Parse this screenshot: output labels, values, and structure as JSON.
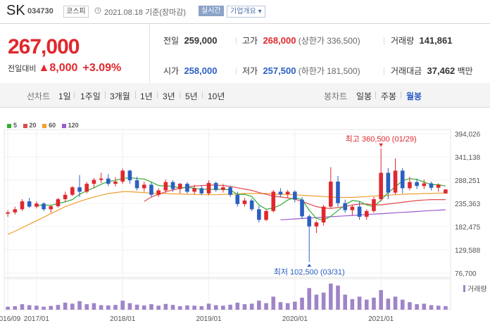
{
  "header": {
    "name": "SK",
    "code": "034730",
    "market": "코스피",
    "date": "2021.08.18 기준(장마감)",
    "realtime_label": "실시간",
    "corp_label": "기업개요 ▾"
  },
  "quote": {
    "price": "267,000",
    "change_label": "전일대비",
    "change_arrow": "▲",
    "change": "8,000",
    "change_pct": "+3.09%",
    "prev_label": "전일",
    "prev": "259,000",
    "high_label": "고가",
    "high": "268,000",
    "upper_limit": "(상한가 336,500)",
    "volume_label": "거래량",
    "volume": "141,861",
    "open_label": "시가",
    "open": "258,000",
    "low_label": "저가",
    "low": "257,500",
    "lower_limit": "(하한가 181,500)",
    "amount_label": "거래대금",
    "amount": "37,462",
    "amount_unit": "백만"
  },
  "tabs": {
    "line_label": "선차트",
    "line_items": [
      "1일",
      "1주일",
      "3개월",
      "1년",
      "3년",
      "5년",
      "10년"
    ],
    "candle_label": "봉차트",
    "candle_items": [
      "일봉",
      "주봉",
      "월봉"
    ],
    "active": "월봉"
  },
  "colors": {
    "up": "#e0282e",
    "down": "#2b5fc2",
    "ma5": "#2fae2f",
    "ma20": "#e04a4a",
    "ma60": "#f0a030",
    "ma120": "#9b59d0",
    "volume": "#a084c8"
  },
  "chart_data": {
    "type": "candlestick",
    "legend": [
      "5",
      "20",
      "60",
      "120"
    ],
    "yticks": [
      "394,026",
      "341,138",
      "288,251",
      "235,363",
      "182,475",
      "129,588",
      "76,700"
    ],
    "ylim": [
      76700,
      394026
    ],
    "xticks": [
      {
        "label": "2016/09",
        "i": 0
      },
      {
        "label": "2017/01",
        "i": 4
      },
      {
        "label": "2018/01",
        "i": 16
      },
      {
        "label": "2019/01",
        "i": 28
      },
      {
        "label": "2020/01",
        "i": 40
      },
      {
        "label": "2021/01",
        "i": 52
      }
    ],
    "annotations": [
      {
        "text": "최고 360,500 (01/29)",
        "i": 52,
        "value": 360500,
        "kind": "high"
      },
      {
        "text": "최저 102,500 (03/31)",
        "i": 42,
        "value": 102500,
        "kind": "low"
      }
    ],
    "volume_label": "거래량",
    "candles": [
      {
        "o": 212000,
        "h": 220000,
        "l": 205000,
        "c": 215000
      },
      {
        "o": 215000,
        "h": 228000,
        "l": 210000,
        "c": 222000
      },
      {
        "o": 222000,
        "h": 245000,
        "l": 218000,
        "c": 240000
      },
      {
        "o": 240000,
        "h": 248000,
        "l": 225000,
        "c": 228000
      },
      {
        "o": 228000,
        "h": 240000,
        "l": 224000,
        "c": 235000
      },
      {
        "o": 235000,
        "h": 238000,
        "l": 218000,
        "c": 222000
      },
      {
        "o": 222000,
        "h": 232000,
        "l": 214000,
        "c": 229000
      },
      {
        "o": 229000,
        "h": 248000,
        "l": 226000,
        "c": 245000
      },
      {
        "o": 245000,
        "h": 262000,
        "l": 238000,
        "c": 255000
      },
      {
        "o": 255000,
        "h": 275000,
        "l": 252000,
        "c": 272000
      },
      {
        "o": 272000,
        "h": 300000,
        "l": 250000,
        "c": 262000
      },
      {
        "o": 262000,
        "h": 284000,
        "l": 258000,
        "c": 280000
      },
      {
        "o": 280000,
        "h": 293000,
        "l": 270000,
        "c": 289000
      },
      {
        "o": 289000,
        "h": 305000,
        "l": 282000,
        "c": 292000
      },
      {
        "o": 292000,
        "h": 302000,
        "l": 275000,
        "c": 280000
      },
      {
        "o": 280000,
        "h": 295000,
        "l": 274000,
        "c": 285000
      },
      {
        "o": 285000,
        "h": 315000,
        "l": 280000,
        "c": 310000
      },
      {
        "o": 310000,
        "h": 312000,
        "l": 280000,
        "c": 288000
      },
      {
        "o": 288000,
        "h": 296000,
        "l": 265000,
        "c": 270000
      },
      {
        "o": 270000,
        "h": 285000,
        "l": 262000,
        "c": 278000
      },
      {
        "o": 278000,
        "h": 284000,
        "l": 250000,
        "c": 255000
      },
      {
        "o": 255000,
        "h": 270000,
        "l": 250000,
        "c": 265000
      },
      {
        "o": 265000,
        "h": 290000,
        "l": 260000,
        "c": 284000
      },
      {
        "o": 284000,
        "h": 288000,
        "l": 262000,
        "c": 268000
      },
      {
        "o": 268000,
        "h": 282000,
        "l": 258000,
        "c": 280000
      },
      {
        "o": 280000,
        "h": 284000,
        "l": 258000,
        "c": 262000
      },
      {
        "o": 262000,
        "h": 278000,
        "l": 256000,
        "c": 270000
      },
      {
        "o": 270000,
        "h": 276000,
        "l": 255000,
        "c": 258000
      },
      {
        "o": 258000,
        "h": 288000,
        "l": 254000,
        "c": 282000
      },
      {
        "o": 282000,
        "h": 285000,
        "l": 262000,
        "c": 266000
      },
      {
        "o": 266000,
        "h": 280000,
        "l": 260000,
        "c": 272000
      },
      {
        "o": 272000,
        "h": 276000,
        "l": 250000,
        "c": 255000
      },
      {
        "o": 255000,
        "h": 262000,
        "l": 228000,
        "c": 234000
      },
      {
        "o": 234000,
        "h": 248000,
        "l": 228000,
        "c": 242000
      },
      {
        "o": 242000,
        "h": 246000,
        "l": 218000,
        "c": 222000
      },
      {
        "o": 222000,
        "h": 230000,
        "l": 192000,
        "c": 198000
      },
      {
        "o": 198000,
        "h": 222000,
        "l": 195000,
        "c": 218000
      },
      {
        "o": 218000,
        "h": 266000,
        "l": 215000,
        "c": 262000
      },
      {
        "o": 262000,
        "h": 270000,
        "l": 250000,
        "c": 256000
      },
      {
        "o": 256000,
        "h": 266000,
        "l": 248000,
        "c": 262000
      },
      {
        "o": 262000,
        "h": 265000,
        "l": 238000,
        "c": 244000
      },
      {
        "o": 244000,
        "h": 250000,
        "l": 200000,
        "c": 206000
      },
      {
        "o": 206000,
        "h": 210000,
        "l": 102500,
        "c": 183000
      },
      {
        "o": 183000,
        "h": 196000,
        "l": 168000,
        "c": 192000
      },
      {
        "o": 192000,
        "h": 232000,
        "l": 185000,
        "c": 228000
      },
      {
        "o": 228000,
        "h": 318000,
        "l": 225000,
        "c": 285000
      },
      {
        "o": 285000,
        "h": 298000,
        "l": 228000,
        "c": 236000
      },
      {
        "o": 236000,
        "h": 244000,
        "l": 214000,
        "c": 220000
      },
      {
        "o": 220000,
        "h": 232000,
        "l": 208000,
        "c": 228000
      },
      {
        "o": 228000,
        "h": 240000,
        "l": 198000,
        "c": 205000
      },
      {
        "o": 205000,
        "h": 222000,
        "l": 198000,
        "c": 218000
      },
      {
        "o": 218000,
        "h": 250000,
        "l": 214000,
        "c": 245000
      },
      {
        "o": 245000,
        "h": 360500,
        "l": 240000,
        "c": 305000
      },
      {
        "o": 305000,
        "h": 316000,
        "l": 245000,
        "c": 260000
      },
      {
        "o": 260000,
        "h": 338000,
        "l": 255000,
        "c": 310000
      },
      {
        "o": 310000,
        "h": 316000,
        "l": 258000,
        "c": 270000
      },
      {
        "o": 270000,
        "h": 296000,
        "l": 265000,
        "c": 284000
      },
      {
        "o": 284000,
        "h": 292000,
        "l": 268000,
        "c": 275000
      },
      {
        "o": 275000,
        "h": 290000,
        "l": 268000,
        "c": 281000
      },
      {
        "o": 281000,
        "h": 285000,
        "l": 265000,
        "c": 271000
      },
      {
        "o": 271000,
        "h": 281000,
        "l": 262000,
        "c": 278000
      },
      {
        "o": 258000,
        "h": 268000,
        "l": 257500,
        "c": 267000
      }
    ],
    "ma5": [
      null,
      null,
      null,
      null,
      230000,
      232000,
      231000,
      235000,
      239000,
      244000,
      256000,
      264000,
      271000,
      279000,
      285000,
      288000,
      292000,
      294000,
      292000,
      291000,
      284000,
      276000,
      275000,
      275000,
      270000,
      272000,
      270000,
      267000,
      268000,
      267000,
      268000,
      266000,
      256000,
      256000,
      251000,
      232000,
      222000,
      225000,
      232000,
      243000,
      249000,
      244000,
      220000,
      201000,
      197000,
      206000,
      219000,
      232000,
      242000,
      240000,
      232000,
      228000,
      243000,
      260000,
      273000,
      287000,
      292000,
      290000,
      284000,
      278000,
      278000,
      275000
    ],
    "ma20": [
      null,
      null,
      null,
      null,
      null,
      null,
      null,
      null,
      null,
      null,
      null,
      null,
      null,
      null,
      null,
      null,
      null,
      null,
      null,
      240000,
      250000,
      256000,
      262000,
      266000,
      270000,
      273000,
      275000,
      276000,
      277000,
      277000,
      276000,
      274000,
      271000,
      268000,
      265000,
      260000,
      256000,
      252000,
      250000,
      248000,
      245000,
      240000,
      234000,
      228000,
      225000,
      224000,
      226000,
      228000,
      232000,
      234000,
      234000,
      232000,
      232000,
      234000,
      236000,
      238000,
      240000,
      242000,
      243000,
      244000,
      244000,
      244000
    ],
    "ma60": [
      null,
      null,
      null,
      null,
      null,
      null,
      null,
      null,
      null,
      null,
      null,
      null,
      null,
      null,
      null,
      null,
      null,
      null,
      null,
      null,
      null,
      null,
      null,
      null,
      null,
      null,
      null,
      null,
      null,
      null,
      null,
      null,
      null,
      null,
      null,
      null,
      null,
      null,
      null,
      null,
      null,
      null,
      null,
      null,
      null,
      null,
      null,
      null,
      null,
      null,
      null,
      null,
      null,
      null,
      null,
      null,
      null,
      null,
      null,
      null,
      null,
      null
    ],
    "ma60_curve": [
      165000,
      172000,
      180000,
      188000,
      196000,
      204000,
      212000,
      220000,
      228000,
      234000,
      240000,
      245000,
      250000,
      254000,
      258000,
      260000,
      262000,
      262000,
      261000,
      260000,
      259000,
      258000,
      258000,
      257000,
      257000,
      256000,
      256000,
      255000,
      255000,
      255000,
      256000,
      256000,
      257000,
      258000,
      258000,
      258000,
      258000,
      257000,
      256000,
      256000,
      255000,
      254000,
      253000,
      252000,
      251000,
      250000,
      249000,
      249000,
      249000,
      250000,
      251000,
      252000,
      253000,
      254000,
      255000,
      256000,
      257000,
      257000,
      258000,
      258000,
      259000,
      259000
    ],
    "ma120_curve": [
      null,
      null,
      null,
      null,
      null,
      null,
      null,
      null,
      null,
      null,
      null,
      null,
      null,
      null,
      null,
      null,
      null,
      null,
      null,
      null,
      null,
      null,
      null,
      null,
      null,
      null,
      null,
      null,
      null,
      null,
      null,
      null,
      null,
      null,
      null,
      null,
      null,
      null,
      198000,
      199000,
      200000,
      201000,
      202000,
      203000,
      204000,
      205000,
      206000,
      207000,
      208000,
      209000,
      210000,
      211000,
      212000,
      213000,
      214000,
      215000,
      216000,
      217000,
      218000,
      219000,
      220000,
      221000
    ],
    "volume": [
      60,
      70,
      110,
      90,
      80,
      60,
      75,
      95,
      140,
      120,
      170,
      110,
      130,
      90,
      85,
      95,
      180,
      130,
      100,
      85,
      110,
      80,
      115,
      95,
      70,
      85,
      80,
      70,
      120,
      90,
      80,
      100,
      140,
      110,
      120,
      180,
      130,
      260,
      150,
      130,
      160,
      240,
      430,
      300,
      340,
      520,
      480,
      300,
      210,
      260,
      200,
      240,
      390,
      220,
      260,
      200,
      150,
      110,
      120,
      90,
      80,
      70
    ],
    "vol_max": 560
  }
}
